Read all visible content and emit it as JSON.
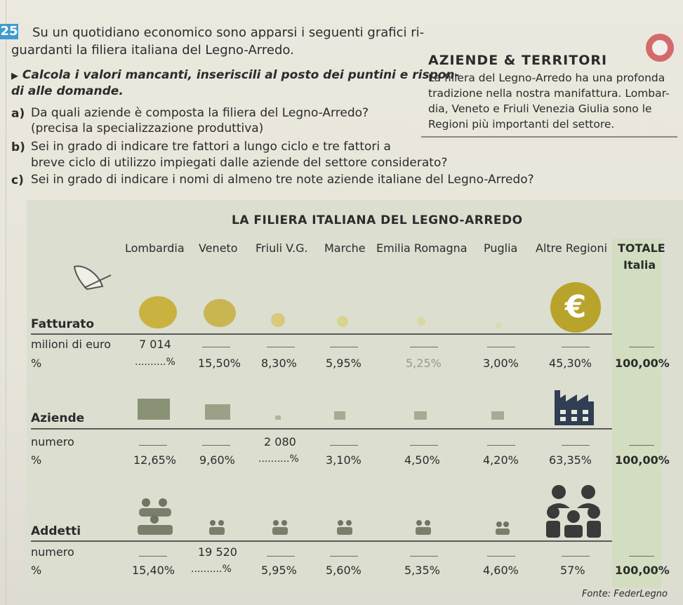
{
  "exercise": {
    "number": "25",
    "intro_line1": "Su un quotidiano economico sono apparsi i seguenti grafici ri-",
    "intro_line2": "guardanti la filiera italiana del Legno-Arredo.",
    "instruction_line1": "Calcola i valori mancanti, inseriscili al posto dei puntini e rispon-",
    "instruction_line2": "di alle domande.",
    "q_a_label": "a)",
    "q_a_line1": "Da quali aziende è composta la filiera del Legno-Arredo?",
    "q_a_line2": "(precisa la specializzazione produttiva)",
    "q_b_label": "b)",
    "q_b_line1": "Sei in grado di indicare tre fattori a lungo ciclo e tre fattori a",
    "q_b_line2": "breve ciclo di utilizzo impiegati dalle aziende del settore considerato?",
    "q_c_label": "c)",
    "q_c_line1": "Sei in grado di indicare i nomi di almeno tre note aziende italiane del Legno-Arredo?"
  },
  "box": {
    "title": "AZIENDE & TERRITORI",
    "line1": "La filiera del Legno-Arredo ha una profonda",
    "line2": "tradizione nella nostra manifattura. Lombar-",
    "line3": "dia, Veneto e Friuli Venezia Giulia sono le",
    "line4": "Regioni più importanti del settore."
  },
  "infographic": {
    "title": "LA FILIERA ITALIANA DEL LEGNO-ARREDO",
    "regions": [
      "Lombardia",
      "Veneto",
      "Friuli V.G.",
      "Marche",
      "Emilia Romagna",
      "Puglia",
      "Altre Regioni"
    ],
    "total_label_1": "TOTALE",
    "total_label_2": "Italia",
    "fatturato": {
      "title": "Fatturato",
      "row1_label": "milioni di euro",
      "row2_label": "%",
      "row1": [
        "7 014",
        "",
        "",
        "",
        "",
        "",
        "",
        ""
      ],
      "row2": [
        "..........%",
        "15,50%",
        "8,30%",
        "5,95%",
        "5,25%",
        "3,00%",
        "45,30%",
        "100,00%"
      ]
    },
    "aziende": {
      "title": "Aziende",
      "row1_label": "numero",
      "row2_label": "%",
      "row1": [
        "",
        "",
        "2 080",
        "",
        "",
        "",
        "",
        ""
      ],
      "row2": [
        "12,65%",
        "9,60%",
        "..........%",
        "3,10%",
        "4,50%",
        "4,20%",
        "63,35%",
        "100,00%"
      ]
    },
    "addetti": {
      "title": "Addetti",
      "row1_label": "numero",
      "row2_label": "%",
      "row1": [
        "",
        "19 520",
        "",
        "",
        "",
        "",
        "",
        ""
      ],
      "row2": [
        "15,40%",
        "..........%",
        "5,95%",
        "5,60%",
        "5,35%",
        "4,60%",
        "57%",
        "100,00%"
      ]
    },
    "source": "Fonte: FederLegno",
    "euro_symbol": "€",
    "colors": {
      "coin": "#c8b23a",
      "factory": "#2f3e52",
      "people": "#3a3a3a",
      "total_column": "#d3dec0"
    }
  }
}
